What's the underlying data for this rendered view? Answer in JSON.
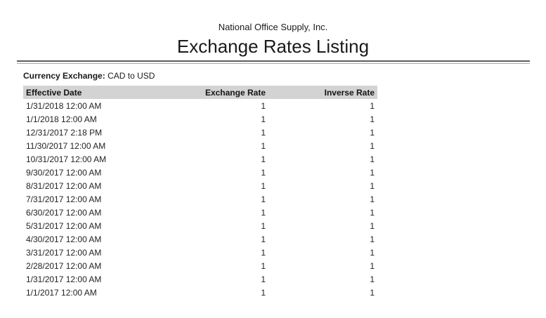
{
  "header": {
    "company": "National Office Supply, Inc.",
    "title": "Exchange Rates Listing"
  },
  "filter": {
    "label": "Currency Exchange:",
    "value": "CAD to USD"
  },
  "table": {
    "columns": [
      "Effective Date",
      "Exchange Rate",
      "Inverse Rate"
    ],
    "rows": [
      [
        "1/31/2018 12:00 AM",
        "1",
        "1"
      ],
      [
        "1/1/2018 12:00 AM",
        "1",
        "1"
      ],
      [
        "12/31/2017 2:18 PM",
        "1",
        "1"
      ],
      [
        "11/30/2017 12:00 AM",
        "1",
        "1"
      ],
      [
        "10/31/2017 12:00 AM",
        "1",
        "1"
      ],
      [
        "9/30/2017 12:00 AM",
        "1",
        "1"
      ],
      [
        "8/31/2017 12:00 AM",
        "1",
        "1"
      ],
      [
        "7/31/2017 12:00 AM",
        "1",
        "1"
      ],
      [
        "6/30/2017 12:00 AM",
        "1",
        "1"
      ],
      [
        "5/31/2017 12:00 AM",
        "1",
        "1"
      ],
      [
        "4/30/2017 12:00 AM",
        "1",
        "1"
      ],
      [
        "3/31/2017 12:00 AM",
        "1",
        "1"
      ],
      [
        "2/28/2017 12:00 AM",
        "1",
        "1"
      ],
      [
        "1/31/2017 12:00 AM",
        "1",
        "1"
      ],
      [
        "1/1/2017 12:00 AM",
        "1",
        "1"
      ]
    ]
  },
  "colors": {
    "table_header_bg": "#d3d3d3",
    "divider_dark": "#5e5e5e",
    "divider_light": "#ababab",
    "text": "#1f1f1f"
  }
}
